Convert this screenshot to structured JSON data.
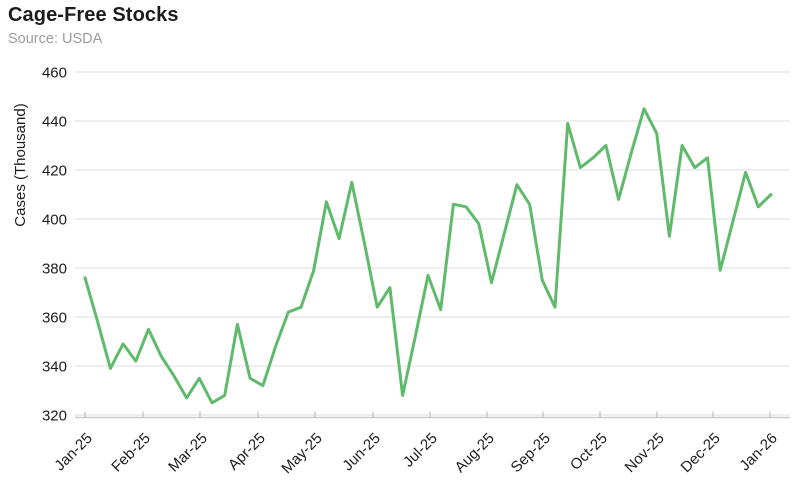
{
  "header": {
    "title": "Cage-Free Stocks",
    "source": "Source: USDA"
  },
  "chart_data": {
    "type": "line",
    "title": "Cage-Free Stocks",
    "source_note": "Source: USDA",
    "ylabel": "Cases (Thousand)",
    "legend": "none",
    "grid": "horizontal",
    "ylim": [
      320,
      460
    ],
    "y_ticks": [
      460,
      440,
      420,
      400,
      380,
      360,
      340,
      320
    ],
    "x_tick_labels": [
      "Jan-25",
      "Feb-25",
      "Mar-25",
      "Apr-25",
      "May-25",
      "Jun-25",
      "Jul-25",
      "Aug-25",
      "Sep-25",
      "Oct-25",
      "Nov-25",
      "Dec-25",
      "Jan-26"
    ],
    "x_tick_positions_weeks": [
      0,
      4.57,
      9.05,
      13.62,
      18.1,
      22.67,
      27.16,
      31.64,
      36.05,
      40.54,
      45.02,
      49.43,
      53.92
    ],
    "x_note": "weekly observations from Jan-25 through Jan-26 (values in thousand cases, estimated from plot)",
    "values": [
      376,
      358,
      339,
      349,
      342,
      355,
      344,
      336,
      327,
      335,
      325,
      328,
      357,
      335,
      332,
      348,
      362,
      364,
      379,
      407,
      392,
      415,
      390,
      364,
      372,
      328,
      352,
      377,
      363,
      406,
      405,
      398,
      374,
      394,
      414,
      406,
      375,
      364,
      439,
      421,
      425,
      430,
      408,
      427,
      445,
      435,
      393,
      430,
      421,
      425,
      379,
      399,
      419,
      405,
      410
    ],
    "line_color": "#5fba6c",
    "grid_color": "#e4e4e4",
    "axis_color": "#c9c9c9",
    "text_color": "#1c1c1c"
  }
}
